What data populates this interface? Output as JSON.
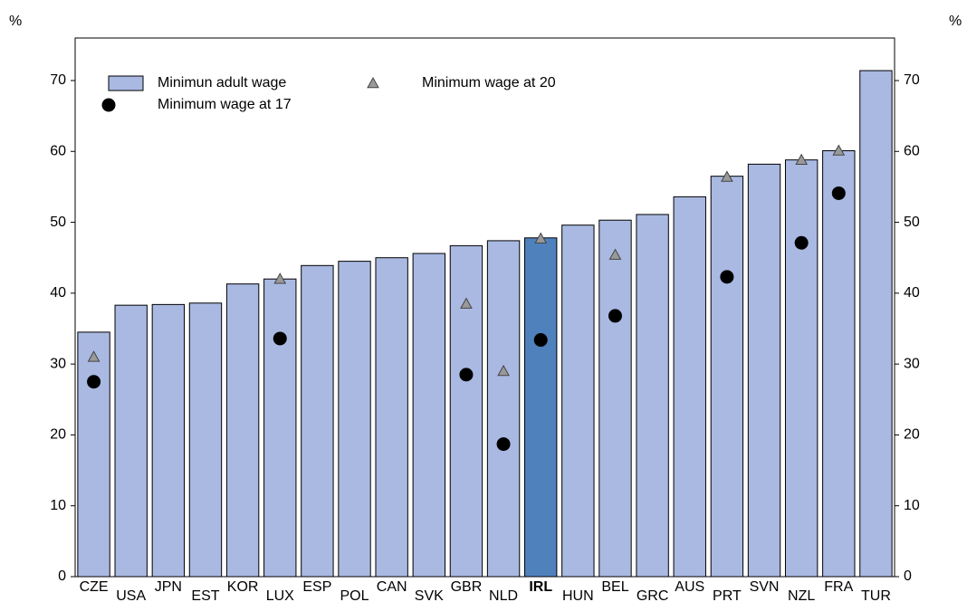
{
  "chart_data": {
    "type": "bar",
    "unit_label": "%",
    "categories": [
      "CZE",
      "USA",
      "JPN",
      "EST",
      "KOR",
      "LUX",
      "ESP",
      "POL",
      "CAN",
      "SVK",
      "GBR",
      "NLD",
      "IRL",
      "HUN",
      "BEL",
      "GRC",
      "AUS",
      "PRT",
      "SVN",
      "NZL",
      "FRA",
      "TUR"
    ],
    "highlight": "IRL",
    "highlight_color": "#4f81bd",
    "series": [
      {
        "name": "Minimun adult wage",
        "marker": "bar",
        "color": "#a9b9e2",
        "values": [
          34.5,
          38.3,
          38.4,
          38.6,
          41.3,
          42.0,
          43.9,
          44.5,
          45.0,
          45.6,
          46.7,
          47.4,
          47.8,
          49.6,
          50.3,
          51.1,
          53.6,
          56.5,
          58.2,
          58.8,
          60.1,
          71.4
        ]
      },
      {
        "name": "Minimum wage at 20",
        "marker": "triangle",
        "color": "#999999",
        "values": [
          31.0,
          null,
          null,
          null,
          null,
          42.0,
          null,
          null,
          null,
          null,
          38.5,
          29.0,
          47.7,
          null,
          45.4,
          null,
          null,
          56.4,
          null,
          58.8,
          60.1,
          null
        ]
      },
      {
        "name": "Minimum wage at 17",
        "marker": "circle",
        "color": "#000000",
        "values": [
          27.5,
          null,
          null,
          null,
          null,
          33.6,
          null,
          null,
          null,
          null,
          28.5,
          18.7,
          33.4,
          null,
          36.8,
          null,
          null,
          42.3,
          null,
          47.1,
          54.1,
          null
        ]
      }
    ],
    "ylim": [
      0,
      76
    ],
    "yticks": [
      0,
      10,
      20,
      30,
      40,
      50,
      60,
      70
    ]
  }
}
